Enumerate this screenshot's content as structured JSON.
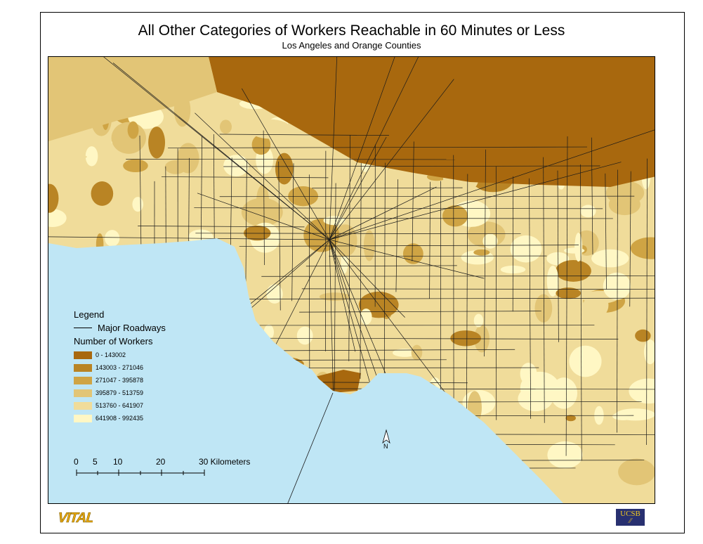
{
  "title": "All Other Categories of Workers Reachable in 60 Minutes or Less",
  "subtitle": "Los Angeles and Orange Counties",
  "colors": {
    "ocean": "#bfe6f5",
    "roads": "#1a1a1a"
  },
  "legend": {
    "heading": "Legend",
    "roadways_label": "Major Roadways",
    "workers_heading": "Number of Workers",
    "classes": [
      {
        "label": "0 - 143002",
        "color": "#a8680e"
      },
      {
        "label": "143003 - 271046",
        "color": "#b98424"
      },
      {
        "label": "271047 - 395878",
        "color": "#cfa444"
      },
      {
        "label": "395879 - 513759",
        "color": "#e2c576"
      },
      {
        "label": "513760 - 641907",
        "color": "#f0dc9a"
      },
      {
        "label": "641908 - 992435",
        "color": "#fff7c4"
      }
    ]
  },
  "scale_bar": {
    "ticks": [
      "0",
      "5",
      "10",
      "20",
      "30 Kilometers"
    ]
  },
  "north_arrow": "N",
  "logos": {
    "left": "VITAL",
    "right": "UCSB"
  }
}
